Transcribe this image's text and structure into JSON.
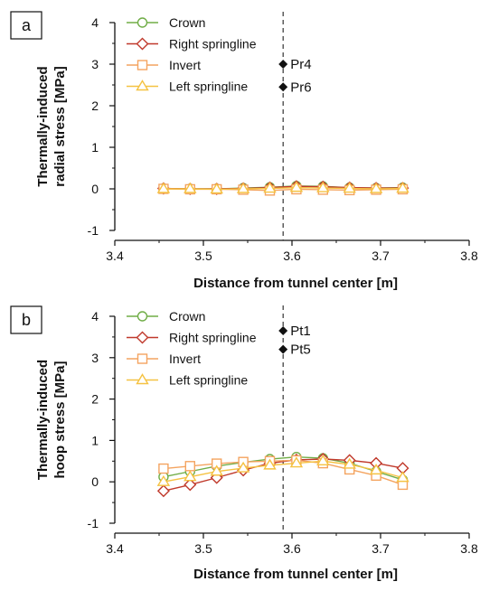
{
  "chart_data": [
    {
      "type": "line",
      "panel_label": "a",
      "xlabel": "Distance from tunnel center [m]",
      "ylabel_lines": [
        "Thermally-induced",
        "radial stress [MPa]"
      ],
      "xlim": [
        3.4,
        3.8
      ],
      "ylim": [
        -1,
        4
      ],
      "xticks": [
        "3.4",
        "3.5",
        "3.6",
        "3.7",
        "3.8"
      ],
      "yticks": [
        "-1",
        "0",
        "1",
        "2",
        "3",
        "4"
      ],
      "x": [
        3.455,
        3.485,
        3.515,
        3.545,
        3.575,
        3.605,
        3.635,
        3.665,
        3.695,
        3.725
      ],
      "series": [
        {
          "name": "Crown",
          "marker": "circle",
          "color": "#70ad47",
          "values": [
            0.01,
            0.0,
            0.0,
            0.02,
            0.04,
            0.07,
            0.06,
            0.03,
            0.02,
            0.03
          ]
        },
        {
          "name": "Right springline",
          "marker": "diamond",
          "color": "#c0392b",
          "values": [
            0.01,
            0.0,
            0.0,
            0.01,
            0.03,
            0.06,
            0.05,
            0.03,
            0.02,
            0.02
          ]
        },
        {
          "name": "Invert",
          "marker": "square",
          "color": "#f4a460",
          "values": [
            0.0,
            -0.01,
            -0.01,
            -0.02,
            -0.04,
            -0.01,
            -0.02,
            -0.03,
            -0.02,
            -0.01
          ]
        },
        {
          "name": "Left springline",
          "marker": "triangle",
          "color": "#f5c242",
          "values": [
            0.0,
            0.0,
            -0.01,
            0.0,
            0.01,
            0.03,
            0.02,
            0.01,
            0.0,
            0.01
          ]
        }
      ],
      "reference_line_x": 3.59,
      "annotations": [
        {
          "label": "Pr4",
          "x": 3.59,
          "y": 3.0
        },
        {
          "label": "Pr6",
          "x": 3.59,
          "y": 2.45
        }
      ]
    },
    {
      "type": "line",
      "panel_label": "b",
      "xlabel": "Distance from tunnel center [m]",
      "ylabel_lines": [
        "Thermally-induced",
        "hoop stress [MPa]"
      ],
      "xlim": [
        3.4,
        3.8
      ],
      "ylim": [
        -1,
        4
      ],
      "xticks": [
        "3.4",
        "3.5",
        "3.6",
        "3.7",
        "3.8"
      ],
      "yticks": [
        "-1",
        "0",
        "1",
        "2",
        "3",
        "4"
      ],
      "x": [
        3.455,
        3.485,
        3.515,
        3.545,
        3.575,
        3.605,
        3.635,
        3.665,
        3.695,
        3.725
      ],
      "series": [
        {
          "name": "Crown",
          "marker": "circle",
          "color": "#70ad47",
          "values": [
            0.12,
            0.25,
            0.38,
            0.47,
            0.55,
            0.6,
            0.57,
            0.45,
            0.25,
            0.05
          ]
        },
        {
          "name": "Right springline",
          "marker": "diamond",
          "color": "#c0392b",
          "values": [
            -0.22,
            -0.07,
            0.1,
            0.28,
            0.45,
            0.53,
            0.55,
            0.52,
            0.45,
            0.33
          ]
        },
        {
          "name": "Invert",
          "marker": "square",
          "color": "#f4a460",
          "values": [
            0.32,
            0.38,
            0.44,
            0.48,
            0.5,
            0.52,
            0.45,
            0.3,
            0.15,
            -0.07
          ]
        },
        {
          "name": "Left springline",
          "marker": "triangle",
          "color": "#f5c242",
          "values": [
            0.0,
            0.12,
            0.25,
            0.33,
            0.4,
            0.45,
            0.5,
            0.42,
            0.28,
            0.1
          ]
        }
      ],
      "reference_line_x": 3.59,
      "annotations": [
        {
          "label": "Pt1",
          "x": 3.59,
          "y": 3.65
        },
        {
          "label": "Pt5",
          "x": 3.59,
          "y": 3.2
        }
      ]
    }
  ]
}
